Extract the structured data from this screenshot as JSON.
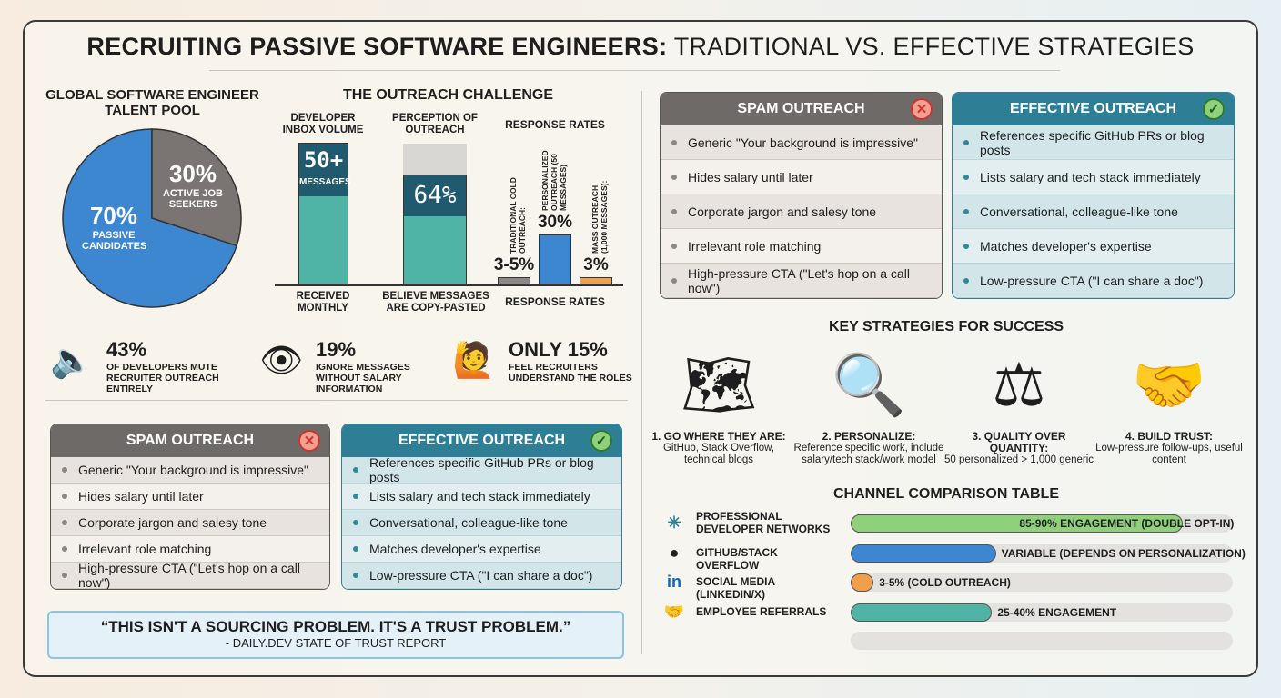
{
  "title": {
    "bold": "RECRUITING PASSIVE SOFTWARE ENGINEERS:",
    "rest": " TRADITIONAL VS. EFFECTIVE STRATEGIES"
  },
  "talent_pool": {
    "title": "GLOBAL SOFTWARE ENGINEER TALENT POOL",
    "passive_pct": "70%",
    "passive_label": "PASSIVE CANDIDATES",
    "active_pct": "30%",
    "active_label": "ACTIVE JOB SEEKERS",
    "colors": {
      "passive": "#3d86d0",
      "active": "#7a7572"
    }
  },
  "outreach": {
    "title": "THE OUTREACH CHALLENGE",
    "inbox": {
      "title": "DEVELOPER INBOX VOLUME",
      "value": "50+",
      "unit": "MESSAGES",
      "caption": "RECEIVED MONTHLY"
    },
    "perception": {
      "title": "PERCEPTION OF OUTREACH",
      "value": "64%",
      "caption": "BELIEVE MESSAGES ARE COPY-PASTED",
      "fill_pct": 64
    },
    "response": {
      "title": "RESPONSE RATES",
      "caption": "RESPONSE RATES",
      "bars": [
        {
          "label": "TRADITIONAL COLD OUTREACH:",
          "value": "3-5%",
          "num": 4,
          "color": "#8a8784"
        },
        {
          "label": "PERSONALIZED OUTREACH (50 MESSAGES)",
          "value": "30%",
          "num": 30,
          "color": "#3d86d0"
        },
        {
          "label": "MASS OUTREACH (1,000 MESSAGES):",
          "value": "3%",
          "num": 3,
          "color": "#f0a04b"
        }
      ]
    }
  },
  "stats": [
    {
      "icon": "speaker-muted-icon",
      "value": "43%",
      "text": "OF DEVELOPERS MUTE RECRUITER OUTREACH ENTIRELY"
    },
    {
      "icon": "eye-dollar-icon",
      "value": "19%",
      "text": "IGNORE MESSAGES WITHOUT SALARY INFORMATION"
    },
    {
      "icon": "confused-person-icon",
      "value": "ONLY 15%",
      "text": "FEEL RECRUITERS UNDERSTAND THE ROLES"
    }
  ],
  "spam": {
    "title": "SPAM OUTREACH",
    "items": [
      "Generic \"Your background is impressive\"",
      "Hides salary until later",
      "Corporate jargon and salesy tone",
      "Irrelevant role matching",
      "High-pressure CTA (\"Let's hop on a call now\")"
    ]
  },
  "effective": {
    "title": "EFFECTIVE OUTREACH",
    "items": [
      "References specific GitHub PRs or blog posts",
      "Lists salary and tech stack immediately",
      "Conversational, colleague-like tone",
      "Matches developer's expertise",
      "Low-pressure CTA (\"I can share a doc\")"
    ]
  },
  "quote": {
    "text": "“THIS ISN'T A SOURCING PROBLEM. IT'S A TRUST PROBLEM.”",
    "source": "- DAILY.DEV STATE OF TRUST REPORT"
  },
  "strategies": {
    "title": "KEY STRATEGIES FOR SUCCESS",
    "items": [
      {
        "icon": "map-compass-code-icon",
        "title": "1. GO WHERE THEY ARE:",
        "text": "GitHub, Stack Overflow, technical blogs"
      },
      {
        "icon": "magnifier-wrench-person-icon",
        "title": "2. PERSONALIZE:",
        "text": "Reference specific work, include salary/tech stack/work model"
      },
      {
        "icon": "balance-scale-icon",
        "title": "3. QUALITY OVER QUANTITY:",
        "text": "50 personalized > 1,000 generic"
      },
      {
        "icon": "handshake-shield-icon",
        "title": "4. BUILD TRUST:",
        "text": "Low-pressure follow-ups, useful content"
      }
    ]
  },
  "channels": {
    "title": "CHANNEL COMPARISON TABLE",
    "rows": [
      {
        "icon": "network-icon",
        "name": "PROFESSIONAL DEVELOPER NETWORKS",
        "label": "85-90% ENGAGEMENT (DOUBLE OPT-IN)",
        "fill_pct": 87,
        "color": "#8fd17b"
      },
      {
        "icon": "github-icon",
        "icon2": "stackoverflow-icon",
        "name": "GITHUB/STACK OVERFLOW",
        "label": "VARIABLE (DEPENDS ON PERSONALIZATION)",
        "fill_pct": 38,
        "color": "#3d86d0"
      },
      {
        "icon": "linkedin-icon",
        "icon2": "x-icon",
        "name": "SOCIAL MEDIA (LINKEDIN/X)",
        "label": "3-5% (COLD OUTREACH)",
        "fill_pct": 6,
        "color": "#f0a04b"
      },
      {
        "icon": "handshake-icon",
        "name": "EMPLOYEE REFERRALS",
        "label": "25-40% ENGAGEMENT",
        "fill_pct": 37,
        "color": "#4fb3a6"
      }
    ]
  }
}
